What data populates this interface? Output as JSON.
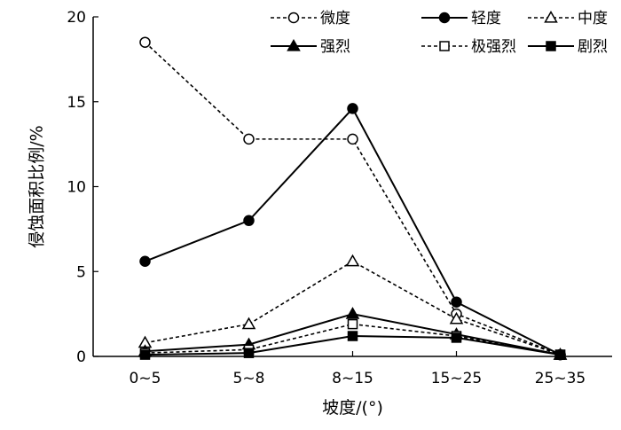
{
  "chart_data": {
    "type": "line",
    "title": "",
    "xlabel": "坡度/(°)",
    "ylabel": "侵蚀面积比例/%",
    "categories": [
      "0~5",
      "5~8",
      "8~15",
      "15~25",
      "25~35"
    ],
    "ylim": [
      0,
      20
    ],
    "yticks": [
      0,
      5,
      10,
      15,
      20
    ],
    "grid": false,
    "legend_position": "top-right",
    "series": [
      {
        "name": "微度",
        "values": [
          18.5,
          12.8,
          12.8,
          2.5,
          0.1
        ],
        "line": "dashed",
        "marker": "circle-open"
      },
      {
        "name": "轻度",
        "values": [
          5.6,
          8.0,
          14.6,
          3.2,
          0.1
        ],
        "line": "solid",
        "marker": "circle-filled"
      },
      {
        "name": "中度",
        "values": [
          0.8,
          1.9,
          5.6,
          2.2,
          0.1
        ],
        "line": "dashed",
        "marker": "triangle-open"
      },
      {
        "name": "强烈",
        "values": [
          0.3,
          0.7,
          2.5,
          1.3,
          0.1
        ],
        "line": "solid",
        "marker": "triangle-filled"
      },
      {
        "name": "极强烈",
        "values": [
          0.2,
          0.4,
          1.9,
          1.2,
          0.1
        ],
        "line": "dashed",
        "marker": "square-open"
      },
      {
        "name": "剧烈",
        "values": [
          0.1,
          0.2,
          1.2,
          1.1,
          0.1
        ],
        "line": "solid",
        "marker": "square-filled"
      }
    ]
  }
}
